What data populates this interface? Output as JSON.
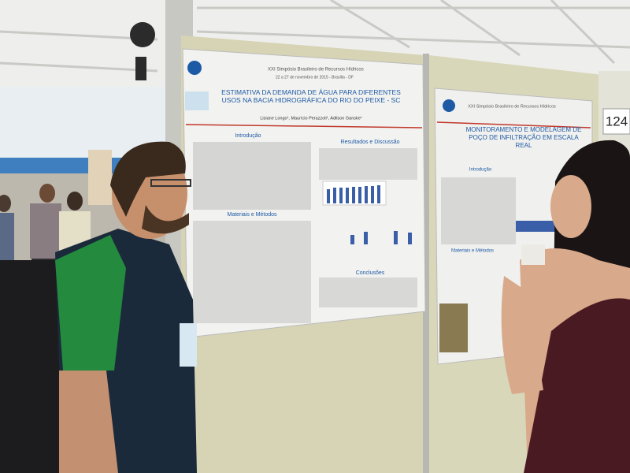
{
  "poster_left": {
    "event": "XXI Simpósio Brasileiro de Recursos Hídricos",
    "dates": "22 a 27 de novembro de 2015 - Brasília - DF",
    "title": "ESTIMATIVA DA DEMANDA DE ÁGUA PARA DIFERENTES USOS NA BACIA HIDROGRÁFICA DO RIO DO PEIXE - SC",
    "authors": "Lisiane Longo¹, Maurício Perazzoli¹, Adilson Ganske¹",
    "sections": [
      "Introdução",
      "Materiais e Métodos",
      "Resultados e Discussão",
      "Conclusões"
    ]
  },
  "poster_right": {
    "event": "XXI Simpósio Brasileiro de Recursos Hídricos",
    "title": "MONITORAMENTO E MODELAGEM DE POÇO DE INFILTRAÇÃO EM ESCALA REAL",
    "sections": [
      "Introdução",
      "Materiais e Métodos"
    ]
  },
  "board_number": "124"
}
